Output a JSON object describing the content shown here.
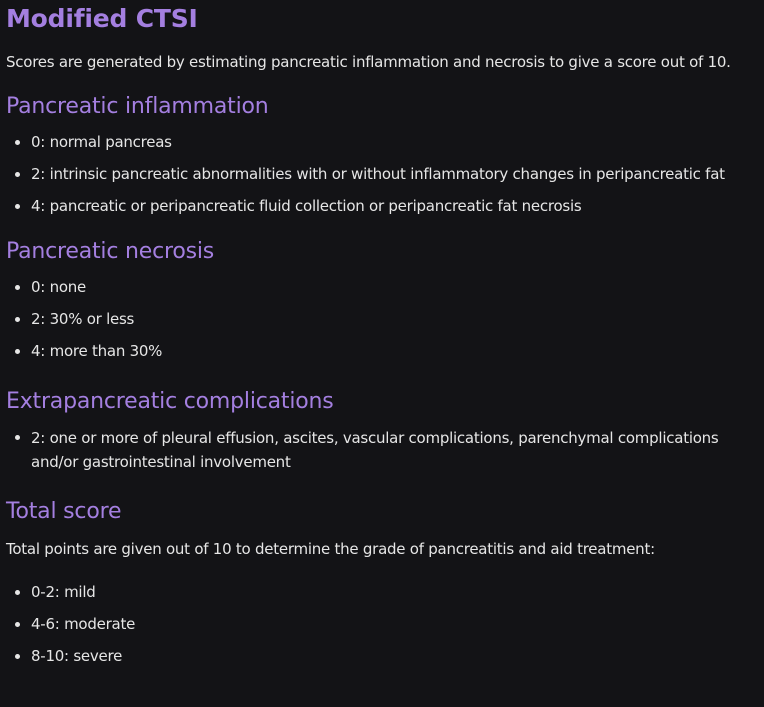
{
  "title": "Modified CTSI",
  "intro": "Scores are generated by estimating pancreatic inflammation and necrosis to give a score out of 10.",
  "sections": {
    "inflammation": {
      "heading": "Pancreatic inflammation",
      "items": [
        "0: normal pancreas",
        "2: intrinsic pancreatic abnormalities with or without inflammatory changes in peripancreatic fat",
        "4: pancreatic or peripancreatic fluid collection or peripancreatic fat necrosis"
      ]
    },
    "necrosis": {
      "heading": "Pancreatic necrosis",
      "items": [
        "0: none",
        "2: 30% or less",
        "4: more than 30%"
      ]
    },
    "extrapancreatic": {
      "heading": "Extrapancreatic complications",
      "items": [
        "2: one or more of pleural effusion, ascites, vascular complications, parenchymal complications and/or gastrointestinal involvement"
      ]
    },
    "total": {
      "heading": "Total score",
      "text": "Total points are given out of 10 to determine the grade of pancreatitis and aid treatment:",
      "items": [
        "0-2: mild",
        "4-6: moderate",
        "8-10: severe"
      ]
    }
  },
  "colors": {
    "background": "#131316",
    "heading": "#a47fe0",
    "text": "#e6e6e6"
  }
}
